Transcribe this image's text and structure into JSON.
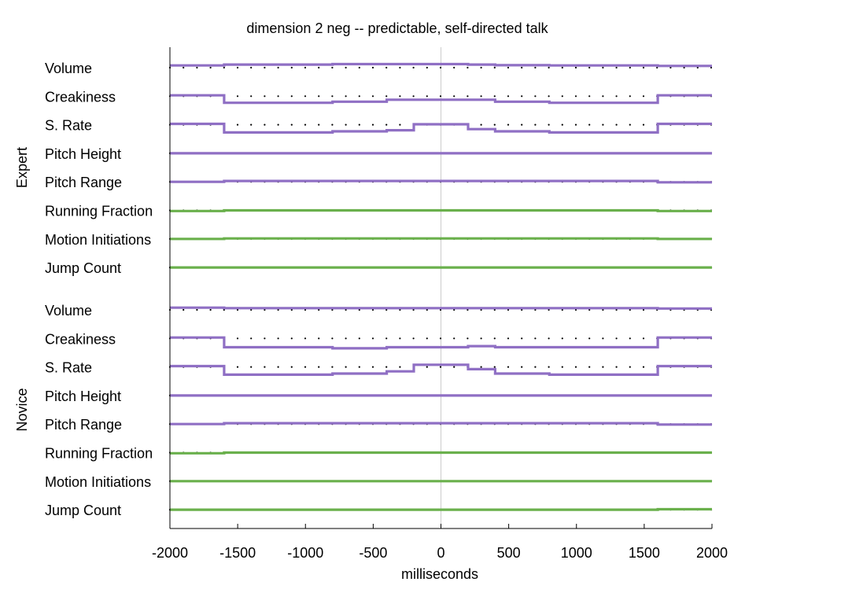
{
  "chart_data": {
    "type": "line",
    "title": "dimension 2 neg -- predictable, self-directed talk",
    "xlabel": "milliseconds",
    "xlim": [
      -2000,
      2000
    ],
    "xticks": [
      "-2000",
      "-1500",
      "-1000",
      "-500",
      "0",
      "500",
      "1000",
      "1500",
      "2000"
    ],
    "xtick_values": [
      -2000,
      -1500,
      -1000,
      -500,
      0,
      500,
      1000,
      1500,
      2000
    ],
    "zero_line": 0,
    "boundaries": [
      -2000,
      -1600,
      -800,
      -400,
      -200,
      200,
      400,
      800,
      1600,
      2000
    ],
    "colors": {
      "prosody": "#8f6fc4",
      "motion": "#6ab04c",
      "baseline_dots": "#000000",
      "zero_line": "#cccccc"
    },
    "groups": [
      {
        "name": "Expert",
        "features": [
          {
            "name": "Volume",
            "kind": "prosody",
            "values": [
              0.1,
              0.14,
              0.16,
              0.16,
              0.16,
              0.14,
              0.11,
              0.1,
              0.08
            ]
          },
          {
            "name": "Creakiness",
            "kind": "prosody",
            "values": [
              0.04,
              -0.3,
              -0.25,
              -0.16,
              -0.16,
              -0.16,
              -0.25,
              -0.3,
              0.04
            ]
          },
          {
            "name": "S. Rate",
            "kind": "prosody",
            "values": [
              0.04,
              -0.35,
              -0.3,
              -0.25,
              0.02,
              -0.2,
              -0.3,
              -0.35,
              0.04
            ]
          },
          {
            "name": "Pitch Height",
            "kind": "prosody",
            "values": [
              0.0,
              0.0,
              0.0,
              0.0,
              0.0,
              0.0,
              0.0,
              0.0,
              0.0
            ]
          },
          {
            "name": "Pitch Range",
            "kind": "prosody",
            "values": [
              0.0,
              0.04,
              0.04,
              0.04,
              0.04,
              0.04,
              0.04,
              0.04,
              -0.02
            ]
          },
          {
            "name": "Running Fraction",
            "kind": "motion",
            "values": [
              -0.03,
              0.0,
              0.0,
              0.0,
              0.0,
              0.0,
              0.0,
              0.0,
              -0.03
            ]
          },
          {
            "name": "Motion Initiations",
            "kind": "motion",
            "values": [
              0.0,
              0.02,
              0.02,
              0.02,
              0.02,
              0.02,
              0.02,
              0.02,
              0.0
            ]
          },
          {
            "name": "Jump Count",
            "kind": "motion",
            "values": [
              0.0,
              0.0,
              0.0,
              0.0,
              0.0,
              0.0,
              0.0,
              0.0,
              0.0
            ]
          }
        ]
      },
      {
        "name": "Novice",
        "features": [
          {
            "name": "Volume",
            "kind": "prosody",
            "values": [
              0.1,
              0.08,
              0.08,
              0.08,
              0.08,
              0.08,
              0.08,
              0.08,
              0.06
            ]
          },
          {
            "name": "Creakiness",
            "kind": "prosody",
            "values": [
              0.04,
              -0.4,
              -0.45,
              -0.4,
              -0.4,
              -0.35,
              -0.4,
              -0.4,
              0.04
            ]
          },
          {
            "name": "S. Rate",
            "kind": "prosody",
            "values": [
              0.04,
              -0.35,
              -0.3,
              -0.2,
              0.1,
              -0.1,
              -0.3,
              -0.35,
              0.04
            ]
          },
          {
            "name": "Pitch Height",
            "kind": "prosody",
            "values": [
              0.0,
              0.0,
              0.0,
              0.0,
              0.0,
              0.0,
              0.0,
              0.0,
              0.0
            ]
          },
          {
            "name": "Pitch Range",
            "kind": "prosody",
            "values": [
              0.0,
              0.04,
              0.04,
              0.04,
              0.04,
              0.04,
              0.04,
              0.04,
              -0.02
            ]
          },
          {
            "name": "Running Fraction",
            "kind": "motion",
            "values": [
              -0.03,
              0.0,
              0.0,
              0.0,
              0.0,
              0.0,
              0.0,
              0.0,
              0.0
            ]
          },
          {
            "name": "Motion Initiations",
            "kind": "motion",
            "values": [
              0.0,
              0.0,
              0.0,
              0.0,
              0.0,
              0.0,
              0.0,
              0.0,
              0.0
            ]
          },
          {
            "name": "Jump Count",
            "kind": "motion",
            "values": [
              0.0,
              0.0,
              0.0,
              0.0,
              0.0,
              0.0,
              0.0,
              0.0,
              0.02
            ]
          }
        ]
      }
    ]
  }
}
